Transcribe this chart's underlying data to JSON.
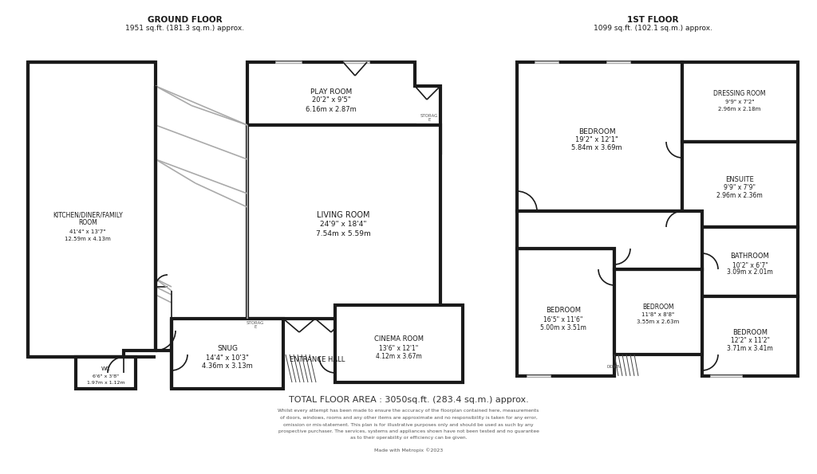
{
  "bg_color": "#ffffff",
  "wall_color": "#1a1a1a",
  "wall_lw": 3.0,
  "thin_lw": 1.2,
  "gray_lw": 0.8,
  "title": "TOTAL FLOOR AREA : 3050sq.ft. (283.4 sq.m.) approx.",
  "ground_floor_title": "GROUND FLOOR",
  "ground_floor_sub": "1951 sq.ft. (181.3 sq.m.) approx.",
  "first_floor_title": "1ST FLOOR",
  "first_floor_sub": "1099 sq.ft. (102.1 sq.m.) approx.",
  "disclaimer": "Whilst every attempt has been made to ensure the accuracy of the floorplan contained here, measurements\nof doors, windows, rooms and any other items are approximate and no responsibility is taken for any error,\nomission or mis-statement. This plan is for illustrative purposes only and should be used as such by any\nprospective purchaser. The services, systems and appliances shown have not been tested and no guarantee\nas to their operability or efficiency can be given.",
  "made_with": "Made with Metropix ©2023"
}
